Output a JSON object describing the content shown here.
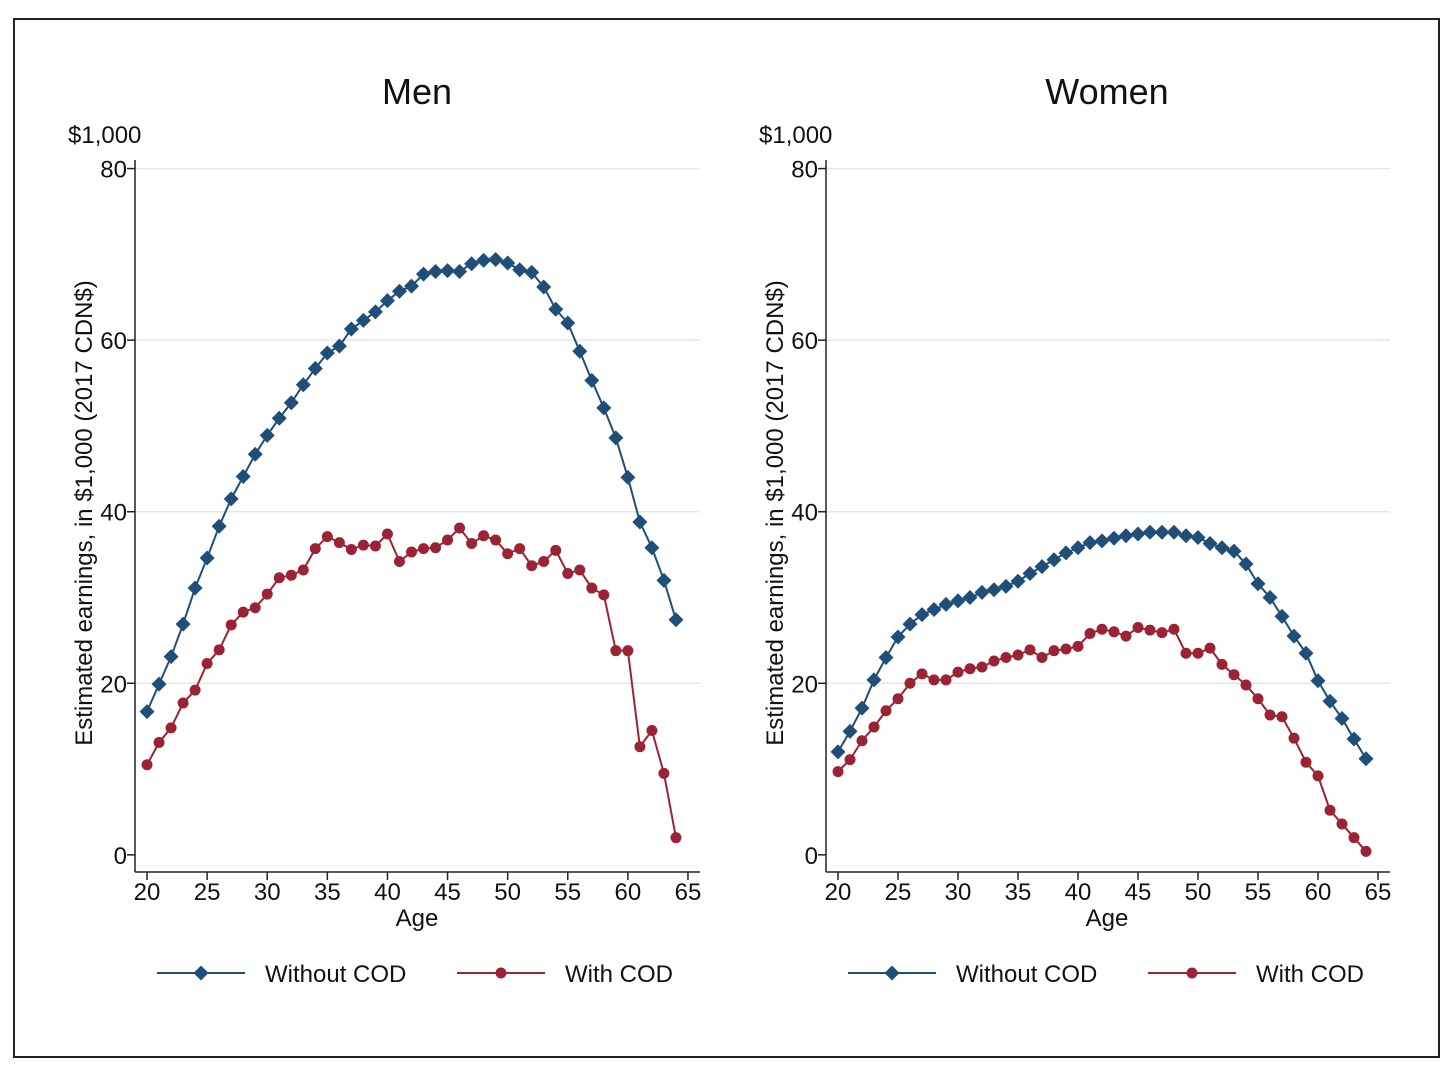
{
  "chart_data": [
    {
      "type": "line",
      "title": "Men",
      "unit_label": "$1,000",
      "xlabel": "Age",
      "ylabel": "Estimated earnings, in $1,000 (2017 CDN$)",
      "xlim": [
        19,
        66
      ],
      "ylim": [
        -2,
        81
      ],
      "xticks": [
        20,
        25,
        30,
        35,
        40,
        45,
        50,
        55,
        60,
        65
      ],
      "yticks": [
        0,
        20,
        40,
        60,
        80
      ],
      "grid": true,
      "legend": "bottom",
      "x": [
        20,
        21,
        22,
        23,
        24,
        25,
        26,
        27,
        28,
        29,
        30,
        31,
        32,
        33,
        34,
        35,
        36,
        37,
        38,
        39,
        40,
        41,
        42,
        43,
        44,
        45,
        46,
        47,
        48,
        49,
        50,
        51,
        52,
        53,
        54,
        55,
        56,
        57,
        58,
        59,
        60,
        61,
        62,
        63,
        64
      ],
      "series": [
        {
          "name": "Without COD",
          "marker": "diamond",
          "color": "#1f4e79",
          "values": [
            16.7,
            19.9,
            23.1,
            26.9,
            31.1,
            34.6,
            38.3,
            41.5,
            44.1,
            46.7,
            48.9,
            50.9,
            52.7,
            54.8,
            56.7,
            58.5,
            59.3,
            61.3,
            62.3,
            63.3,
            64.6,
            65.7,
            66.3,
            67.7,
            68.0,
            68.1,
            68.0,
            68.9,
            69.3,
            69.4,
            69.0,
            68.2,
            67.9,
            66.2,
            63.6,
            62.0,
            58.7,
            55.3,
            52.1,
            48.6,
            44.0,
            38.8,
            35.8,
            32.0,
            27.4
          ]
        },
        {
          "name": "With COD",
          "marker": "circle",
          "color": "#9b2335",
          "values": [
            10.5,
            13.1,
            14.8,
            17.7,
            19.2,
            22.3,
            23.9,
            26.8,
            28.3,
            28.8,
            30.4,
            32.3,
            32.6,
            33.2,
            35.7,
            37.1,
            36.4,
            35.6,
            36.1,
            36.0,
            37.4,
            34.2,
            35.3,
            35.7,
            35.8,
            36.7,
            38.1,
            36.3,
            37.2,
            36.7,
            35.1,
            35.7,
            33.7,
            34.2,
            35.5,
            32.8,
            33.2,
            31.1,
            30.3,
            23.8,
            23.8,
            12.6,
            14.5,
            9.5,
            2.0
          ]
        }
      ]
    },
    {
      "type": "line",
      "title": "Women",
      "unit_label": "$1,000",
      "xlabel": "Age",
      "ylabel": "Estimated earnings, in $1,000 (2017 CDN$)",
      "xlim": [
        19,
        66
      ],
      "ylim": [
        -2,
        81
      ],
      "xticks": [
        20,
        25,
        30,
        35,
        40,
        45,
        50,
        55,
        60,
        65
      ],
      "yticks": [
        0,
        20,
        40,
        60,
        80
      ],
      "grid": true,
      "legend": "bottom",
      "x": [
        20,
        21,
        22,
        23,
        24,
        25,
        26,
        27,
        28,
        29,
        30,
        31,
        32,
        33,
        34,
        35,
        36,
        37,
        38,
        39,
        40,
        41,
        42,
        43,
        44,
        45,
        46,
        47,
        48,
        49,
        50,
        51,
        52,
        53,
        54,
        55,
        56,
        57,
        58,
        59,
        60,
        61,
        62,
        63,
        64
      ],
      "series": [
        {
          "name": "Without COD",
          "marker": "diamond",
          "color": "#1f4e79",
          "values": [
            12.0,
            14.4,
            17.1,
            20.4,
            23.0,
            25.4,
            26.9,
            28.0,
            28.6,
            29.2,
            29.6,
            30.0,
            30.6,
            30.9,
            31.3,
            31.9,
            32.8,
            33.6,
            34.4,
            35.2,
            35.8,
            36.4,
            36.6,
            36.9,
            37.2,
            37.4,
            37.6,
            37.6,
            37.6,
            37.2,
            37.0,
            36.3,
            35.8,
            35.4,
            33.9,
            31.6,
            30.0,
            27.8,
            25.5,
            23.5,
            20.3,
            17.9,
            15.9,
            13.5,
            11.2
          ]
        },
        {
          "name": "With COD",
          "marker": "circle",
          "color": "#9b2335",
          "values": [
            9.7,
            11.1,
            13.3,
            14.9,
            16.8,
            18.2,
            20.0,
            21.1,
            20.4,
            20.4,
            21.3,
            21.7,
            21.9,
            22.6,
            23.0,
            23.3,
            23.9,
            23.0,
            23.8,
            24.0,
            24.3,
            25.8,
            26.3,
            26.0,
            25.5,
            26.5,
            26.2,
            25.9,
            26.3,
            23.5,
            23.5,
            24.1,
            22.2,
            21.0,
            19.8,
            18.2,
            16.3,
            16.1,
            13.6,
            10.8,
            9.2,
            5.2,
            3.6,
            2.0,
            0.4
          ]
        }
      ]
    }
  ]
}
